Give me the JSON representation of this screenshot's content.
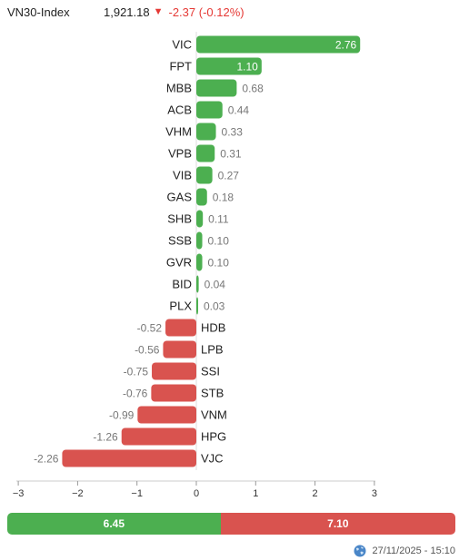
{
  "header": {
    "index_name": "VN30-Index",
    "index_value": "1,921.18",
    "change": "-2.37 (-0.12%)"
  },
  "chart_data": {
    "type": "bar",
    "orientation": "horizontal",
    "categories": [
      "VIC",
      "FPT",
      "MBB",
      "ACB",
      "VHM",
      "VPB",
      "VIB",
      "GAS",
      "SHB",
      "SSB",
      "GVR",
      "BID",
      "PLX",
      "HDB",
      "LPB",
      "SSI",
      "STB",
      "VNM",
      "HPG",
      "VJC"
    ],
    "values": [
      2.76,
      1.1,
      0.68,
      0.44,
      0.33,
      0.31,
      0.27,
      0.18,
      0.11,
      0.1,
      0.1,
      0.04,
      0.03,
      -0.52,
      -0.56,
      -0.75,
      -0.76,
      -0.99,
      -1.26,
      -2.26
    ],
    "labels": [
      "2.76",
      "1.10",
      "0.68",
      "0.44",
      "0.33",
      "0.31",
      "0.27",
      "0.18",
      "0.11",
      "0.10",
      "0.10",
      "0.04",
      "0.03",
      "-0.52",
      "-0.56",
      "-0.75",
      "-0.76",
      "-0.99",
      "-1.26",
      "-2.26"
    ],
    "xlim": [
      -3,
      3
    ],
    "xticks": [
      -3,
      -2,
      -1,
      0,
      1,
      2,
      3
    ],
    "xtick_labels": [
      "−3",
      "−2",
      "−1",
      "0",
      "1",
      "2",
      "3"
    ],
    "positive_color": "#4caf50",
    "negative_color": "#d9534f",
    "grid": false
  },
  "summary": {
    "positive_total": "6.45",
    "negative_total": "7.10",
    "positive_share": 0.476
  },
  "footer": {
    "timestamp": "27/11/2025 - 15:10",
    "icon": "globe-icon"
  }
}
